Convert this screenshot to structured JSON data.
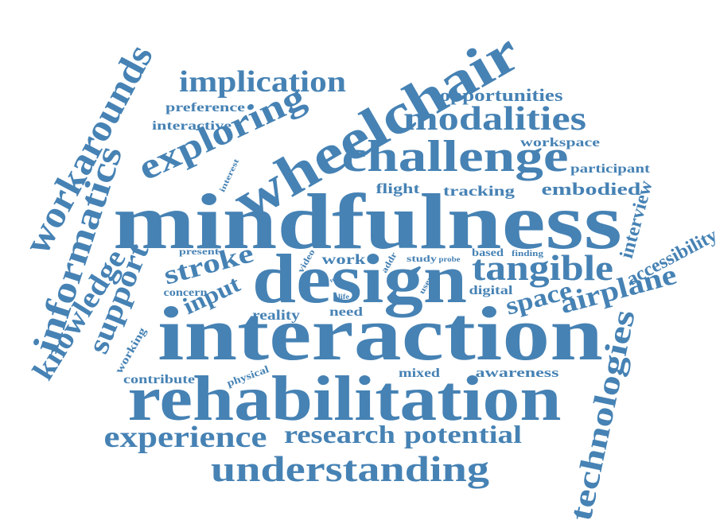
{
  "color": "#4682b4",
  "words": {
    "wheelchair": "wheelchair",
    "mindfulness": "mindfulness",
    "interaction": "interaction",
    "rehabilitation": "rehabilitation",
    "design": "design",
    "challenge": "challenge",
    "modalities": "modalities",
    "implication": "implication",
    "exploring": "exploring",
    "workarounds": "workarounds",
    "informatics": "informatics",
    "knowledge": "knowledge",
    "support": "support",
    "stroke": "stroke",
    "input": "input",
    "tangible": "tangible",
    "airplane": "airplane",
    "space": "space",
    "accessibility": "accessibility",
    "technologies": "technologies",
    "interview": "interview",
    "experience": "experience",
    "research": "research",
    "potential": "potential",
    "understanding": "understanding",
    "opportunities": "opportunities",
    "workspace": "workspace",
    "participant": "participant",
    "embodied": "embodied",
    "flight": "flight",
    "tracking": "tracking",
    "preference": "preference",
    "interactive": "interactive",
    "interest": "interest",
    "present": "present",
    "concern": "concern",
    "work": "work",
    "addr": "addr",
    "study": "study",
    "probe": "probe",
    "based": "based",
    "finding": "finding",
    "digital": "digital",
    "video": "video",
    "tool": "tool",
    "user": "user",
    "life": "life",
    "reality": "reality",
    "need": "need",
    "working": "working",
    "contribute": "contribute",
    "physical": "physical",
    "mixed": "mixed",
    "awareness": "awareness"
  }
}
